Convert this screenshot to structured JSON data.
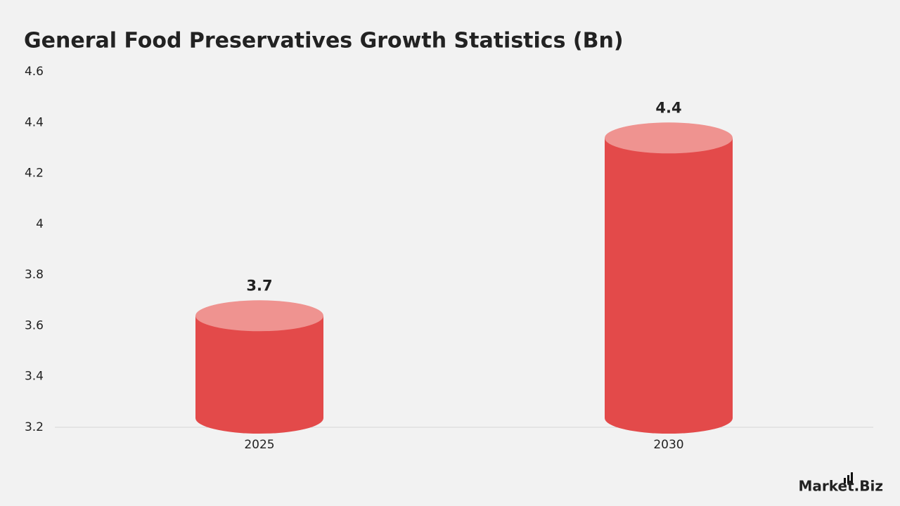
{
  "chart_data": {
    "type": "bar",
    "title": "General Food Preservatives Growth Statistics (Bn)",
    "categories": [
      "2025",
      "2030"
    ],
    "values": [
      3.7,
      4.4
    ],
    "color": "#e34a4a",
    "top_color": "#ef9390",
    "ylim": [
      3.2,
      4.6
    ],
    "yticks": [
      3.2,
      3.4,
      3.6,
      3.8,
      4,
      4.2,
      4.4,
      4.6
    ],
    "grid": false,
    "watermark": "Market.Biz"
  }
}
